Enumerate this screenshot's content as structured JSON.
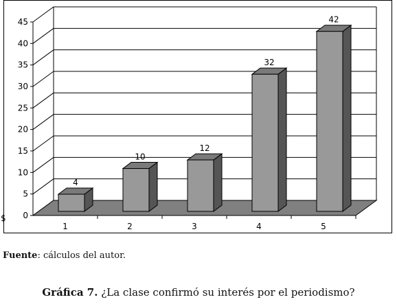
{
  "chart_data": {
    "type": "bar",
    "categories": [
      "1",
      "2",
      "3",
      "4",
      "5"
    ],
    "values": [
      4,
      10,
      12,
      32,
      42
    ],
    "data_labels": [
      "4",
      "10",
      "12",
      "32",
      "42"
    ],
    "yticks": [
      "0",
      "5",
      "10",
      "15",
      "20",
      "25",
      "30",
      "35",
      "40",
      "45"
    ],
    "ylim": [
      0,
      45
    ],
    "stray_left_label": "$",
    "style": "3d-bar",
    "grid": true,
    "colors": {
      "bar_front": "#999999",
      "bar_top": "#7a7a7a",
      "bar_side": "#555555",
      "floor": "#808080",
      "grid": "#000000"
    }
  },
  "source": {
    "label": "Fuente",
    "text": ": cálculos del autor."
  },
  "caption": {
    "label": "Gráfica 7.",
    "text": " ¿La clase confirmó su interés por el periodismo?"
  }
}
